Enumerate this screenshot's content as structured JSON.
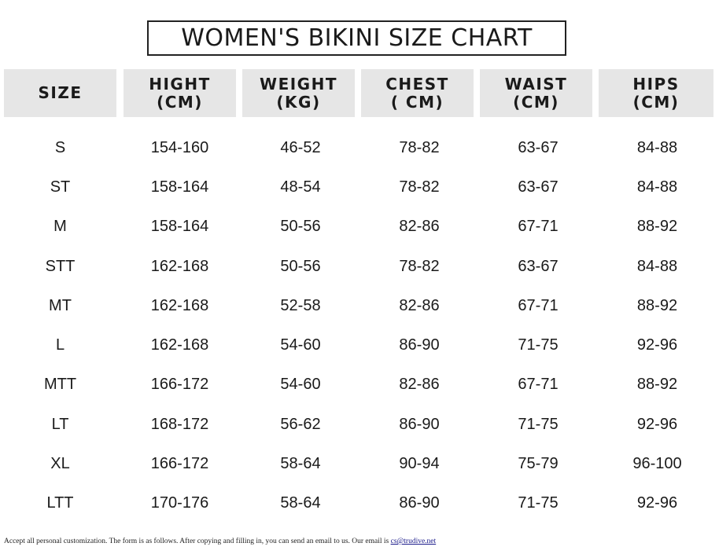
{
  "title": "WOMEN'S BIKINI SIZE CHART",
  "headers": [
    {
      "line1": "SIZE",
      "line2": ""
    },
    {
      "line1": "HIGHT",
      "line2": "(CM)"
    },
    {
      "line1": "WEIGHT",
      "line2": "(KG)"
    },
    {
      "line1": "CHEST",
      "line2": "( CM)"
    },
    {
      "line1": "WAIST",
      "line2": "(CM)"
    },
    {
      "line1": "HIPS",
      "line2": "(CM)"
    }
  ],
  "rows": [
    [
      "S",
      "154-160",
      "46-52",
      "78-82",
      "63-67",
      "84-88"
    ],
    [
      "ST",
      "158-164",
      "48-54",
      "78-82",
      "63-67",
      "84-88"
    ],
    [
      "M",
      "158-164",
      "50-56",
      "82-86",
      "67-71",
      "88-92"
    ],
    [
      "STT",
      "162-168",
      "50-56",
      "78-82",
      "63-67",
      "84-88"
    ],
    [
      "MT",
      "162-168",
      "52-58",
      "82-86",
      "67-71",
      "88-92"
    ],
    [
      "L",
      "162-168",
      "54-60",
      "86-90",
      "71-75",
      "92-96"
    ],
    [
      "MTT",
      "166-172",
      "54-60",
      "82-86",
      "67-71",
      "88-92"
    ],
    [
      "LT",
      "168-172",
      "56-62",
      "86-90",
      "71-75",
      "92-96"
    ],
    [
      "XL",
      "166-172",
      "58-64",
      "90-94",
      "75-79",
      "96-100"
    ],
    [
      "LTT",
      "170-176",
      "58-64",
      "86-90",
      "71-75",
      "92-96"
    ]
  ],
  "footer": {
    "text": "Accept all personal customization. The form is as follows. After copying and filling in, you can send an email to us. Our email is ",
    "email": "cs@trudive.net"
  }
}
